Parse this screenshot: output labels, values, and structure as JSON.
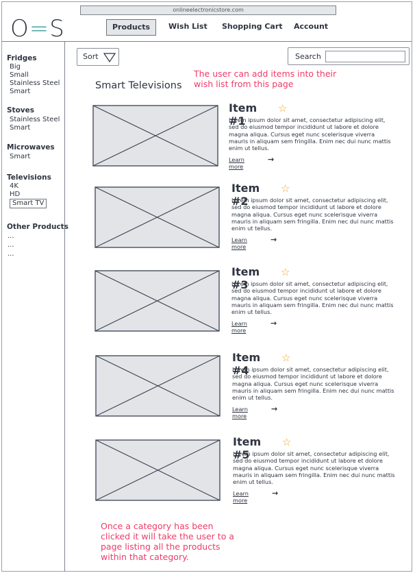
{
  "browser": {
    "url": "onlineelectronicstore.com"
  },
  "header": {
    "logo_left": "O",
    "logo_mid": "=",
    "logo_right": "S",
    "nav": [
      "Products",
      "Wish List",
      "Shopping Cart",
      "Account"
    ],
    "active_nav": "Products"
  },
  "sidebar": {
    "fridges": {
      "title": "Fridges",
      "items": [
        "Big",
        "Small",
        "Stainless Steel",
        "Smart"
      ]
    },
    "stoves": {
      "title": "Stoves",
      "items": [
        "Stainless Steel",
        "Smart"
      ]
    },
    "microwaves": {
      "title": "Microwaves",
      "items": [
        "Smart"
      ]
    },
    "televisions": {
      "title": "Televisions",
      "items": [
        "4K",
        "HD",
        "Smart TV"
      ]
    },
    "other": {
      "title": "Other Products",
      "items": [
        "...",
        "...",
        "..."
      ]
    }
  },
  "toolbar": {
    "sort_label": "Sort",
    "search_label": "Search",
    "search_value": ""
  },
  "page_title": "Smart Televisions",
  "notes": {
    "wishlist": "The user can add items into their wish list from this page",
    "category": "Once a category has been clicked it will take the user to a page listing all the products within that category."
  },
  "items": [
    {
      "title": "Item #1",
      "desc": "Lorem ipsum dolor sit amet, consectetur adipiscing elit, sed do eiusmod tempor incididunt ut labore et dolore magna aliqua. Cursus eget nunc scelerisque viverra mauris in aliquam sem fringilla. Enim nec dui nunc mattis enim ut tellus.",
      "link": "Learn more"
    },
    {
      "title": "Item #2",
      "desc": "Lorem ipsum dolor sit amet, consectetur adipiscing elit, sed do eiusmod tempor incididunt ut labore et dolore magna aliqua. Cursus eget nunc scelerisque viverra mauris in aliquam sem fringilla. Enim nec dui nunc mattis enim ut tellus.",
      "link": "Learn more"
    },
    {
      "title": "Item #3",
      "desc": "Lorem ipsum dolor sit amet, consectetur adipiscing elit, sed do eiusmod tempor incididunt ut labore et dolore magna aliqua. Cursus eget nunc scelerisque viverra mauris in aliquam sem fringilla. Enim nec dui nunc mattis enim ut tellus.",
      "link": "Learn more"
    },
    {
      "title": "Item #4",
      "desc": "Lorem ipsum dolor sit amet, consectetur adipiscing elit, sed do eiusmod tempor incididunt ut labore et dolore magna aliqua. Cursus eget nunc scelerisque viverra mauris in aliquam sem fringilla. Enim nec dui nunc mattis enim ut tellus.",
      "link": "Learn more"
    },
    {
      "title": "Item #5",
      "desc": "Lorem ipsum dolor sit amet, consectetur adipiscing elit, sed do eiusmod tempor incididunt ut labore et dolore magna aliqua. Cursus eget nunc scelerisque viverra mauris in aliquam sem fringilla. Enim nec dui nunc mattis enim ut tellus.",
      "link": "Learn more"
    }
  ],
  "colors": {
    "annotation": "#ef3b68",
    "star": "#f2a51a",
    "placeholder_fill": "#e2e4e8",
    "ink": "#2e3440"
  },
  "icons": {
    "sort": "triangle-down-icon",
    "favorite": "star-outline-icon",
    "link": "arrow-right-icon"
  }
}
